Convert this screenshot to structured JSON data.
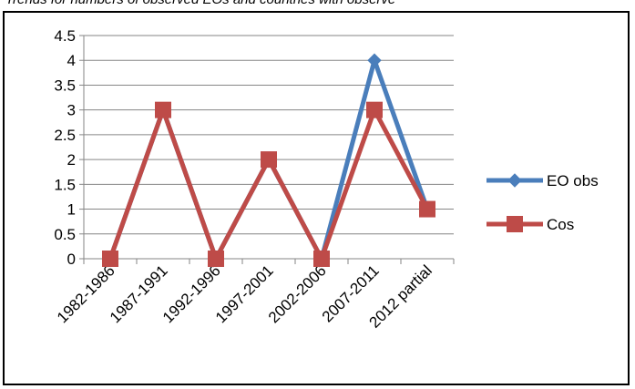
{
  "caption": "Trends for numbers of observed EOs and countries with observe",
  "chart_data": {
    "type": "line",
    "categories": [
      "1982-1986",
      "1987-1991",
      "1992-1996",
      "1997-2001",
      "2002-2006",
      "2007-2011",
      "2012 partial"
    ],
    "series": [
      {
        "name": "EO obs",
        "values": [
          0,
          3,
          0,
          2,
          0,
          4,
          1
        ],
        "color": "#4A7EBB",
        "marker": "diamond"
      },
      {
        "name": "Cos",
        "values": [
          0,
          3,
          0,
          2,
          0,
          3,
          1
        ],
        "color": "#BE4B48",
        "marker": "square"
      }
    ],
    "ylim": [
      0,
      4.5
    ],
    "yticks": [
      "0",
      "0.5",
      "1",
      "1.5",
      "2",
      "2.5",
      "3",
      "3.5",
      "4",
      "4.5"
    ],
    "grid": true,
    "legend": "right"
  }
}
